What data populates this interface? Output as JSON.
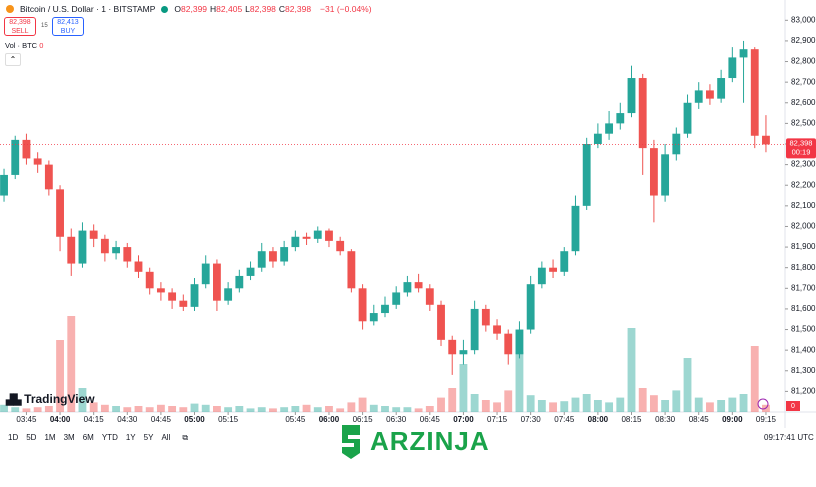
{
  "header": {
    "symbol": "Bitcoin / U.S. Dollar · 1 · BITSTAMP",
    "ohlc": [
      {
        "key": "O",
        "value": "82,399"
      },
      {
        "key": "H",
        "value": "82,405"
      },
      {
        "key": "L",
        "value": "82,398"
      },
      {
        "key": "C",
        "value": "82,398"
      }
    ],
    "change": "−31 (−0.04%)",
    "sell_price": "82,398",
    "sell_label": "SELL",
    "spread": "15",
    "buy_price": "82,413",
    "buy_label": "BUY",
    "volume_label": "Vol · BTC",
    "volume_value": "0"
  },
  "chart_data": {
    "type": "candlestick",
    "x": [
      "03:35",
      "03:40",
      "03:45",
      "03:50",
      "03:55",
      "04:00",
      "04:05",
      "04:10",
      "04:15",
      "04:20",
      "04:25",
      "04:30",
      "04:35",
      "04:40",
      "04:45",
      "04:50",
      "04:55",
      "05:00",
      "05:05",
      "05:10",
      "05:15",
      "05:20",
      "05:25",
      "05:30",
      "05:35",
      "05:40",
      "05:45",
      "05:50",
      "05:55",
      "06:00",
      "06:05",
      "06:10",
      "06:15",
      "06:20",
      "06:25",
      "06:30",
      "06:35",
      "06:40",
      "06:45",
      "06:50",
      "06:55",
      "07:00",
      "07:05",
      "07:10",
      "07:15",
      "07:20",
      "07:25",
      "07:30",
      "07:35",
      "07:40",
      "07:45",
      "07:50",
      "07:55",
      "08:00",
      "08:05",
      "08:10",
      "08:15",
      "08:20",
      "08:25",
      "08:30",
      "08:35",
      "08:40",
      "08:45",
      "08:50",
      "08:55",
      "09:00",
      "09:05",
      "09:10",
      "09:15"
    ],
    "open": [
      82150,
      82250,
      82420,
      82330,
      82300,
      82180,
      81950,
      81820,
      81980,
      81940,
      81870,
      81900,
      81830,
      81780,
      81700,
      81680,
      81640,
      81610,
      81720,
      81820,
      81640,
      81700,
      81760,
      81800,
      81880,
      81830,
      81900,
      81950,
      81940,
      81980,
      81930,
      81880,
      81700,
      81540,
      81580,
      81620,
      81680,
      81730,
      81700,
      81620,
      81450,
      81380,
      81400,
      81600,
      81520,
      81480,
      81380,
      81500,
      81720,
      81800,
      81780,
      81880,
      82100,
      82400,
      82450,
      82500,
      82550,
      82720,
      82380,
      82150,
      82350,
      82450,
      82600,
      82660,
      82620,
      82720,
      82820,
      82860,
      82440
    ],
    "high": [
      82280,
      82440,
      82450,
      82360,
      82320,
      82200,
      81990,
      82020,
      82010,
      81960,
      81930,
      81920,
      81860,
      81800,
      81730,
      81700,
      81670,
      81750,
      81860,
      81840,
      81730,
      81790,
      81830,
      81920,
      81900,
      81930,
      81980,
      81970,
      82000,
      81990,
      81950,
      81890,
      81720,
      81620,
      81660,
      81710,
      81760,
      81770,
      81720,
      81640,
      81470,
      81450,
      81640,
      81620,
      81550,
      81500,
      81540,
      81760,
      81830,
      81840,
      81900,
      82150,
      82430,
      82500,
      82560,
      82600,
      82780,
      82740,
      82420,
      82400,
      82480,
      82640,
      82700,
      82690,
      82760,
      82870,
      82900,
      82870,
      82540
    ],
    "low": [
      82120,
      82230,
      82300,
      82260,
      82150,
      81880,
      81760,
      81800,
      81900,
      81830,
      81840,
      81800,
      81750,
      81670,
      81640,
      81600,
      81590,
      81590,
      81700,
      81590,
      81620,
      81680,
      81740,
      81780,
      81800,
      81810,
      81880,
      81910,
      81920,
      81900,
      81860,
      81680,
      81500,
      81520,
      81560,
      81600,
      81660,
      81680,
      81590,
      81420,
      81280,
      81330,
      81380,
      81490,
      81450,
      81330,
      81360,
      81480,
      81700,
      81750,
      81760,
      81860,
      82080,
      82380,
      82420,
      82470,
      82530,
      82250,
      82020,
      82120,
      82320,
      82430,
      82570,
      82590,
      82600,
      82700,
      82600,
      82380,
      82360
    ],
    "close": [
      82250,
      82420,
      82330,
      82300,
      82180,
      81950,
      81820,
      81980,
      81940,
      81870,
      81900,
      81830,
      81780,
      81700,
      81680,
      81640,
      81610,
      81720,
      81820,
      81640,
      81700,
      81760,
      81800,
      81880,
      81830,
      81900,
      81950,
      81940,
      81980,
      81930,
      81880,
      81700,
      81540,
      81580,
      81620,
      81680,
      81730,
      81700,
      81620,
      81450,
      81380,
      81400,
      81600,
      81520,
      81480,
      81380,
      81500,
      81720,
      81800,
      81780,
      81880,
      82100,
      82400,
      82450,
      82500,
      82550,
      82720,
      82380,
      82150,
      82350,
      82450,
      82600,
      82660,
      82620,
      82720,
      82820,
      82860,
      82440,
      82398
    ],
    "volume": [
      6,
      4,
      3,
      4,
      5,
      60,
      80,
      20,
      8,
      6,
      5,
      4,
      5,
      4,
      6,
      5,
      4,
      7,
      6,
      5,
      4,
      5,
      3,
      4,
      3,
      4,
      5,
      6,
      4,
      5,
      3,
      8,
      12,
      6,
      5,
      4,
      4,
      3,
      5,
      12,
      20,
      40,
      15,
      10,
      8,
      18,
      50,
      14,
      10,
      8,
      9,
      12,
      15,
      10,
      8,
      12,
      70,
      20,
      14,
      10,
      18,
      45,
      12,
      8,
      10,
      12,
      15,
      55,
      6
    ],
    "up_color": "#26a69a",
    "down_color": "#ef5350",
    "xlim": [
      -0.36,
      69.7
    ],
    "xticks": [
      {
        "value": 2,
        "label": "03:45"
      },
      {
        "value": 5,
        "label": "04:00"
      },
      {
        "value": 8,
        "label": "04:15"
      },
      {
        "value": 11,
        "label": "04:30"
      },
      {
        "value": 14,
        "label": "04:45"
      },
      {
        "value": 17,
        "label": "05:00"
      },
      {
        "value": 20,
        "label": "05:15"
      },
      {
        "value": 26,
        "label": "05:45"
      },
      {
        "value": 29,
        "label": "06:00"
      },
      {
        "value": 32,
        "label": "06:15"
      },
      {
        "value": 35,
        "label": "06:30"
      },
      {
        "value": 38,
        "label": "06:45"
      },
      {
        "value": 41,
        "label": "07:00"
      },
      {
        "value": 44,
        "label": "07:15"
      },
      {
        "value": 47,
        "label": "07:30"
      },
      {
        "value": 50,
        "label": "07:45"
      },
      {
        "value": 53,
        "label": "08:00"
      },
      {
        "value": 56,
        "label": "08:15"
      },
      {
        "value": 59,
        "label": "08:30"
      },
      {
        "value": 62,
        "label": "08:45"
      },
      {
        "value": 65,
        "label": "09:00"
      },
      {
        "value": 68,
        "label": "09:15"
      }
    ],
    "ylim": [
      81100,
      83050
    ],
    "yticks": [
      {
        "value": 81200,
        "label": "81,200"
      },
      {
        "value": 81300,
        "label": "81,300"
      },
      {
        "value": 81400,
        "label": "81,400"
      },
      {
        "value": 81500,
        "label": "81,500"
      },
      {
        "value": 81600,
        "label": "81,600"
      },
      {
        "value": 81700,
        "label": "81,700"
      },
      {
        "value": 81800,
        "label": "81,800"
      },
      {
        "value": 81900,
        "label": "81,900"
      },
      {
        "value": 82000,
        "label": "82,000"
      },
      {
        "value": 82100,
        "label": "82,100"
      },
      {
        "value": 82200,
        "label": "82,200"
      },
      {
        "value": 82300,
        "label": "82,300"
      },
      {
        "value": 82400,
        "label": "82,400"
      },
      {
        "value": 82500,
        "label": "82,500"
      },
      {
        "value": 82600,
        "label": "82,600"
      },
      {
        "value": 82700,
        "label": "82,700"
      },
      {
        "value": 82800,
        "label": "82,800"
      },
      {
        "value": 82900,
        "label": "82,900"
      },
      {
        "value": 83000,
        "label": "83,000"
      }
    ],
    "last_price": {
      "value": 82398,
      "label": "82,398"
    },
    "countdown": "00:19",
    "volume_tag": "0"
  },
  "toolbar": {
    "ranges": [
      "1D",
      "5D",
      "1M",
      "3M",
      "6M",
      "YTD",
      "1Y",
      "5Y",
      "All"
    ],
    "clock": "09:17:41 UTC"
  },
  "branding": {
    "tradingview": "TradingView",
    "watermark": "ARZINJA"
  }
}
